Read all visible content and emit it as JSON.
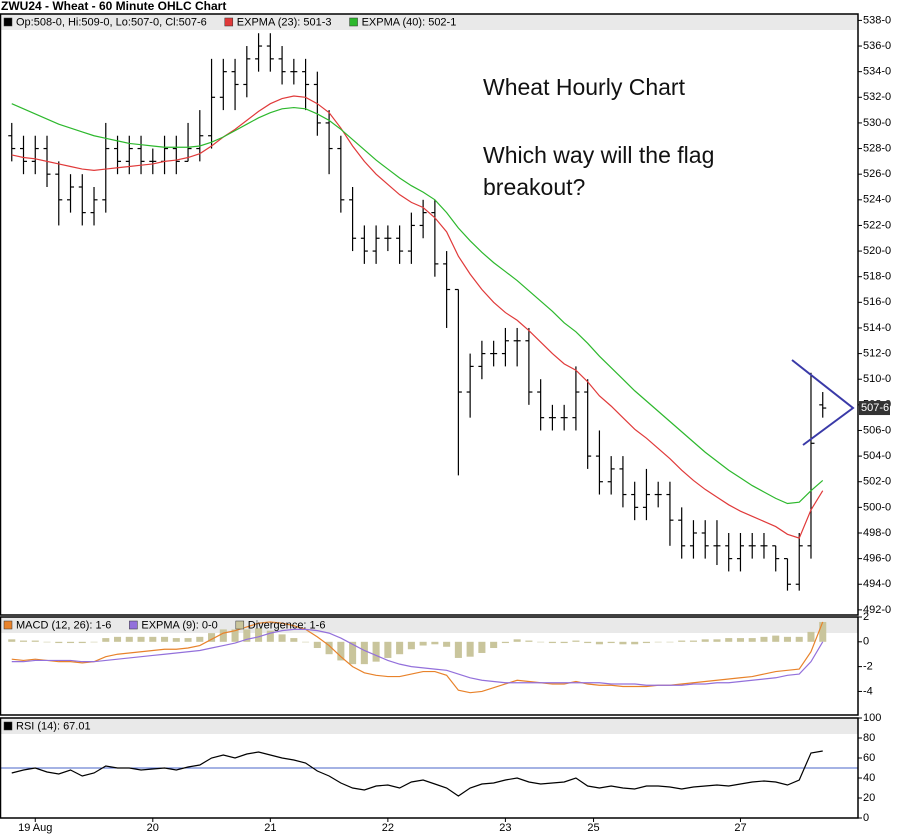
{
  "chart_data": [
    {
      "type": "ohlc",
      "title": "ZWU24 - Wheat - 60 Minute OHLC Chart",
      "annotations": [
        "Wheat Hourly Chart",
        "Which way will the flag",
        "breakout?"
      ],
      "ohlc": {
        "name": "Op:508-0, Hi:509-0, Lo:507-0, Cl:507-6",
        "color": "#000000",
        "open": [
          529,
          528,
          527,
          528,
          526,
          524,
          525,
          523,
          524,
          528,
          527,
          528,
          527,
          527,
          528,
          527,
          528,
          529,
          532,
          534,
          533,
          535,
          536,
          535,
          534,
          534,
          533,
          530,
          528,
          524,
          521,
          520,
          521,
          521,
          520,
          522,
          523,
          519,
          517,
          509,
          511,
          512,
          512,
          513,
          513,
          509,
          507,
          507,
          507,
          509,
          504,
          502,
          503,
          501,
          500,
          501,
          501,
          499,
          497,
          498,
          497,
          497,
          496,
          497,
          497,
          497,
          496,
          494,
          497,
          508
        ],
        "high": [
          530,
          529,
          529,
          529,
          527,
          526,
          526,
          525,
          530,
          529,
          529,
          529,
          528,
          529,
          529,
          530,
          531,
          535,
          535,
          535,
          536,
          537,
          537,
          536,
          535,
          535,
          534,
          531,
          529,
          525,
          522,
          522,
          522,
          522,
          523,
          524,
          524,
          520,
          517,
          512,
          513,
          513,
          514,
          514,
          514,
          510,
          508,
          508,
          511,
          510,
          506,
          504,
          504,
          502,
          503,
          502,
          502,
          500,
          499,
          499,
          499,
          498,
          498,
          498,
          498,
          497,
          496,
          498,
          510.5,
          509
        ],
        "low": [
          527,
          526,
          526,
          525,
          522,
          523,
          522,
          522,
          523,
          526,
          526,
          526,
          526,
          526,
          526,
          527,
          527,
          528,
          531,
          531,
          532,
          534,
          534,
          533,
          533,
          531,
          529,
          526,
          523,
          520,
          519,
          519,
          520,
          519,
          519,
          521,
          518,
          514,
          502.5,
          507,
          510,
          511,
          511,
          511,
          508,
          506,
          506,
          506,
          506,
          503,
          501,
          501,
          500,
          499,
          499,
          500,
          497,
          496,
          496,
          496,
          495.5,
          495,
          495,
          496,
          496,
          495,
          493.5,
          493.5,
          496,
          507
        ],
        "close": [
          528,
          527,
          528,
          526,
          524,
          525,
          523,
          524,
          528,
          527,
          528,
          527,
          527,
          528,
          527,
          528,
          529,
          532,
          534,
          533,
          535,
          536,
          535,
          534,
          534,
          533,
          530,
          528,
          524,
          521,
          520,
          521,
          521,
          520,
          522,
          523,
          519,
          517,
          509,
          511,
          512,
          512,
          513,
          513,
          509,
          507,
          507,
          507,
          509,
          504,
          502,
          503,
          501,
          500,
          501,
          501,
          499,
          497,
          498,
          497,
          497,
          496,
          497,
          497,
          497,
          496,
          494,
          497,
          505,
          507.75
        ]
      },
      "series": [
        {
          "name": "EXPMA (23): 501-3",
          "color": "#e03a3a",
          "values": [
            527.5,
            527.3,
            527.2,
            527,
            526.8,
            526.6,
            526.4,
            526.3,
            526.4,
            526.5,
            526.6,
            526.7,
            526.8,
            527,
            527.1,
            527.3,
            527.6,
            528.2,
            528.9,
            529.5,
            530.2,
            530.9,
            531.5,
            531.9,
            532.1,
            532,
            531.5,
            530.8,
            529.6,
            528.2,
            527,
            526,
            525.2,
            524.4,
            523.8,
            523.4,
            522.6,
            521.5,
            519.6,
            518.2,
            517,
            516,
            515.2,
            514.6,
            513.8,
            512.9,
            512,
            511.2,
            510.7,
            509.8,
            508.7,
            507.9,
            507,
            506.1,
            505.4,
            504.6,
            503.8,
            502.9,
            502.1,
            501.4,
            500.8,
            500.2,
            499.7,
            499.3,
            498.9,
            498.5,
            497.9,
            497.6,
            499.8,
            501.3
          ]
        },
        {
          "name": "EXPMA (40): 502-1",
          "color": "#2db82d",
          "values": [
            531.5,
            531.1,
            530.7,
            530.3,
            529.9,
            529.6,
            529.3,
            529,
            528.8,
            528.6,
            528.4,
            528.3,
            528.2,
            528.1,
            528.1,
            528.1,
            528.2,
            528.5,
            528.9,
            529.4,
            529.9,
            530.4,
            530.8,
            531.1,
            531.2,
            531.1,
            530.7,
            530.2,
            529.5,
            528.7,
            527.9,
            527.1,
            526.4,
            525.7,
            525.1,
            524.6,
            524,
            523,
            521.8,
            520.8,
            519.9,
            519.1,
            518.4,
            517.7,
            516.9,
            516.1,
            515.3,
            514.4,
            513.7,
            512.8,
            511.8,
            510.9,
            510,
            509.1,
            508.3,
            507.5,
            506.7,
            505.9,
            505.1,
            504.3,
            503.6,
            502.9,
            502.3,
            501.7,
            501.2,
            500.7,
            500.3,
            500.4,
            501.3,
            502.1
          ]
        }
      ],
      "last_price": {
        "value": 507.75,
        "label": "507-6"
      },
      "xlim": [
        -1,
        72
      ],
      "ylim": [
        491.6,
        538.5
      ],
      "yticks": [
        {
          "value": 538,
          "label": "538-0"
        },
        {
          "value": 536,
          "label": "536-0"
        },
        {
          "value": 534,
          "label": "534-0"
        },
        {
          "value": 532,
          "label": "532-0"
        },
        {
          "value": 530,
          "label": "530-0"
        },
        {
          "value": 528,
          "label": "528-0"
        },
        {
          "value": 526,
          "label": "526-0"
        },
        {
          "value": 524,
          "label": "524-0"
        },
        {
          "value": 522,
          "label": "522-0"
        },
        {
          "value": 520,
          "label": "520-0"
        },
        {
          "value": 518,
          "label": "518-0"
        },
        {
          "value": 516,
          "label": "516-0"
        },
        {
          "value": 514,
          "label": "514-0"
        },
        {
          "value": 512,
          "label": "512-0"
        },
        {
          "value": 510,
          "label": "510-0"
        },
        {
          "value": 508,
          "label": "508-0"
        },
        {
          "value": 506,
          "label": "506-0"
        },
        {
          "value": 504,
          "label": "504-0"
        },
        {
          "value": 502,
          "label": "502-0"
        },
        {
          "value": 500,
          "label": "500-0"
        },
        {
          "value": 498,
          "label": "498-0"
        },
        {
          "value": 496,
          "label": "496-0"
        },
        {
          "value": 494,
          "label": "494-0"
        },
        {
          "value": 492,
          "label": "492-0"
        }
      ]
    },
    {
      "type": "line",
      "series": [
        {
          "name": "MACD (12, 26): 1-6",
          "color": "#e8822a",
          "values": [
            -1.4,
            -1.5,
            -1.4,
            -1.5,
            -1.6,
            -1.6,
            -1.7,
            -1.6,
            -1.2,
            -1.0,
            -0.9,
            -0.8,
            -0.7,
            -0.6,
            -0.6,
            -0.5,
            -0.3,
            0.2,
            0.7,
            0.9,
            1.2,
            1.5,
            1.6,
            1.5,
            1.3,
            1.0,
            0.4,
            -0.3,
            -1.2,
            -2.0,
            -2.5,
            -2.7,
            -2.8,
            -2.8,
            -2.6,
            -2.4,
            -2.4,
            -2.7,
            -3.9,
            -4.1,
            -4.0,
            -3.7,
            -3.4,
            -3.1,
            -3.2,
            -3.3,
            -3.4,
            -3.4,
            -3.2,
            -3.4,
            -3.5,
            -3.5,
            -3.6,
            -3.6,
            -3.6,
            -3.5,
            -3.5,
            -3.4,
            -3.3,
            -3.2,
            -3.1,
            -3.0,
            -2.9,
            -2.8,
            -2.6,
            -2.4,
            -2.3,
            -2.2,
            -0.8,
            1.6
          ]
        },
        {
          "name": "EXPMA (9): 0-0",
          "color": "#9370db",
          "values": [
            -1.6,
            -1.6,
            -1.5,
            -1.5,
            -1.5,
            -1.5,
            -1.6,
            -1.6,
            -1.5,
            -1.4,
            -1.3,
            -1.2,
            -1.1,
            -1.0,
            -0.9,
            -0.8,
            -0.7,
            -0.5,
            -0.3,
            -0.1,
            0.2,
            0.4,
            0.7,
            0.9,
            1.0,
            1.0,
            0.9,
            0.7,
            0.3,
            -0.2,
            -0.7,
            -1.1,
            -1.5,
            -1.8,
            -2.0,
            -2.1,
            -2.2,
            -2.3,
            -2.6,
            -2.9,
            -3.1,
            -3.2,
            -3.3,
            -3.3,
            -3.3,
            -3.3,
            -3.3,
            -3.3,
            -3.3,
            -3.3,
            -3.3,
            -3.4,
            -3.4,
            -3.4,
            -3.5,
            -3.5,
            -3.5,
            -3.5,
            -3.4,
            -3.4,
            -3.3,
            -3.3,
            -3.2,
            -3.1,
            -3.0,
            -2.9,
            -2.7,
            -2.6,
            -1.6,
            0.0
          ]
        },
        {
          "name": "Divergence: 1-6",
          "color": "#c9c59c",
          "style": "histogram",
          "values": [
            0.2,
            0.1,
            0.1,
            0,
            -0.1,
            -0.1,
            -0.1,
            0,
            0.3,
            0.4,
            0.4,
            0.4,
            0.4,
            0.4,
            0.3,
            0.3,
            0.4,
            0.7,
            1.0,
            1.0,
            1.0,
            1.1,
            0.9,
            0.6,
            0.3,
            0,
            -0.5,
            -1.0,
            -1.5,
            -1.8,
            -1.8,
            -1.6,
            -1.3,
            -1.0,
            -0.6,
            -0.3,
            -0.2,
            -0.4,
            -1.3,
            -1.2,
            -0.9,
            -0.5,
            -0.1,
            0.2,
            0.1,
            0,
            -0.1,
            -0.1,
            0.1,
            -0.1,
            -0.2,
            -0.1,
            -0.2,
            -0.2,
            -0.1,
            0,
            0,
            0.1,
            0.1,
            0.2,
            0.2,
            0.3,
            0.3,
            0.3,
            0.4,
            0.5,
            0.4,
            0.4,
            0.8,
            1.6
          ]
        }
      ],
      "xlim": [
        -1,
        72
      ],
      "ylim": [
        -5.9,
        2
      ],
      "yticks": [
        2,
        0,
        -2,
        -4
      ]
    },
    {
      "type": "line",
      "series": [
        {
          "name": "RSI (14): 67.01",
          "color": "#000000",
          "values": [
            45,
            48,
            50,
            46,
            44,
            48,
            42,
            45,
            52,
            50,
            50,
            48,
            49,
            50,
            48,
            51,
            53,
            60,
            63,
            60,
            64,
            66,
            63,
            60,
            58,
            55,
            47,
            42,
            35,
            30,
            28,
            32,
            33,
            30,
            36,
            38,
            34,
            30,
            22,
            30,
            34,
            35,
            38,
            40,
            36,
            34,
            35,
            36,
            40,
            32,
            30,
            32,
            30,
            29,
            32,
            32,
            31,
            29,
            31,
            32,
            33,
            32,
            34,
            36,
            37,
            36,
            33,
            38,
            65,
            67.01
          ]
        }
      ],
      "reference": {
        "value": 50,
        "color": "#4a64c8"
      },
      "xlim": [
        -1,
        72
      ],
      "ylim": [
        0,
        100
      ],
      "yticks": [
        0,
        20,
        40,
        60,
        80,
        100
      ],
      "xticks": [
        {
          "value": 2,
          "label": "19 Aug"
        },
        {
          "value": 12,
          "label": "20"
        },
        {
          "value": 22,
          "label": "21"
        },
        {
          "value": 32,
          "label": "22"
        },
        {
          "value": 42,
          "label": "23"
        },
        {
          "value": 49.5,
          "label": "25"
        },
        {
          "value": 62,
          "label": "27"
        }
      ]
    }
  ]
}
